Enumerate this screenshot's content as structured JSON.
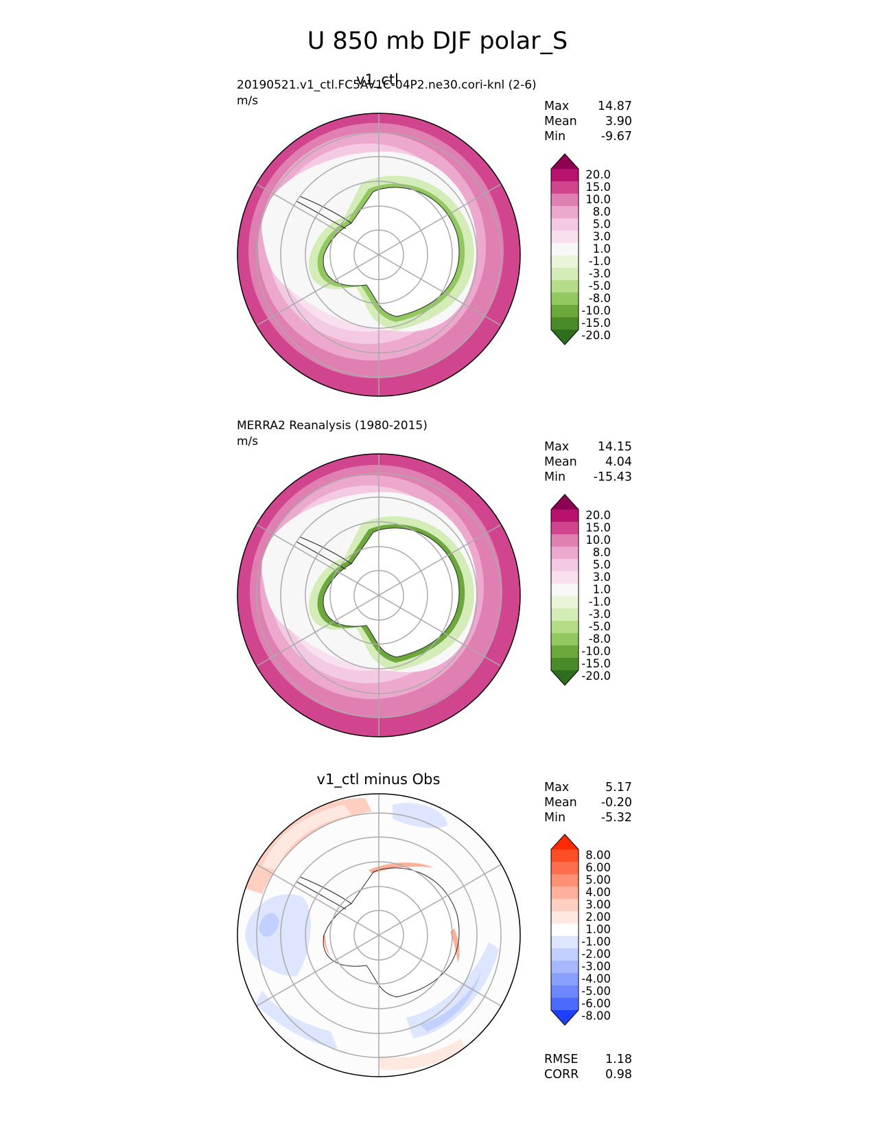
{
  "figure": {
    "title": "U 850 mb DJF polar_S"
  },
  "panels": [
    {
      "id": "test",
      "title": "v1_ctl",
      "left_text": "20190521.v1_ctl.FC5AV1C-04P2.ne30.cori-knl (2-6)",
      "units": "m/s",
      "stats": [
        {
          "label": "Max",
          "value": "14.87"
        },
        {
          "label": "Mean",
          "value": "3.90"
        },
        {
          "label": "Min",
          "value": "-9.67"
        }
      ],
      "colorbar_ticks": [
        "20.0",
        "15.0",
        "10.0",
        "8.0",
        "5.0",
        "3.0",
        "1.0",
        "-1.0",
        "-3.0",
        "-5.0",
        "-8.0",
        "-10.0",
        "-15.0",
        "-20.0"
      ],
      "colors": [
        "#8e0152",
        "#b8126f",
        "#d1458f",
        "#e07fb1",
        "#eda9cd",
        "#f4cae2",
        "#f9e0ee",
        "#f7f7f7",
        "#e9f4d8",
        "#d4ecb8",
        "#b5dc87",
        "#93c75f",
        "#6da83c",
        "#4a8a29",
        "#2d6e1d"
      ]
    },
    {
      "id": "reference",
      "title": "",
      "left_text": "MERRA2 Reanalysis (1980-2015)",
      "units": "m/s",
      "stats": [
        {
          "label": "Max",
          "value": "14.15"
        },
        {
          "label": "Mean",
          "value": "4.04"
        },
        {
          "label": "Min",
          "value": "-15.43"
        }
      ],
      "colorbar_ticks": [
        "20.0",
        "15.0",
        "10.0",
        "8.0",
        "5.0",
        "3.0",
        "1.0",
        "-1.0",
        "-3.0",
        "-5.0",
        "-8.0",
        "-10.0",
        "-15.0",
        "-20.0"
      ],
      "colors": [
        "#8e0152",
        "#b8126f",
        "#d1458f",
        "#e07fb1",
        "#eda9cd",
        "#f4cae2",
        "#f9e0ee",
        "#f7f7f7",
        "#e9f4d8",
        "#d4ecb8",
        "#b5dc87",
        "#93c75f",
        "#6da83c",
        "#4a8a29",
        "#2d6e1d"
      ]
    },
    {
      "id": "diff",
      "title": "v1_ctl minus Obs",
      "left_text": "",
      "units": "",
      "stats": [
        {
          "label": "Max",
          "value": "5.17"
        },
        {
          "label": "Mean",
          "value": "-0.20"
        },
        {
          "label": "Min",
          "value": "-5.32"
        }
      ],
      "bottom_stats": [
        {
          "label": "RMSE",
          "value": "1.18"
        },
        {
          "label": "CORR",
          "value": "0.98"
        }
      ],
      "colorbar_ticks": [
        "8.00",
        "6.00",
        "5.00",
        "4.00",
        "3.00",
        "2.00",
        "1.00",
        "-1.00",
        "-2.00",
        "-3.00",
        "-4.00",
        "-5.00",
        "-6.00",
        "-8.00"
      ],
      "colors": [
        "#ff2a00",
        "#ff4d26",
        "#ff6e4d",
        "#ff9073",
        "#ffb09a",
        "#ffd0c2",
        "#ffe8e0",
        "#ffffff",
        "#dde5ff",
        "#c2d0ff",
        "#a6b8ff",
        "#8aa0ff",
        "#6e87ff",
        "#4e6bff",
        "#1e3fff"
      ]
    }
  ]
}
